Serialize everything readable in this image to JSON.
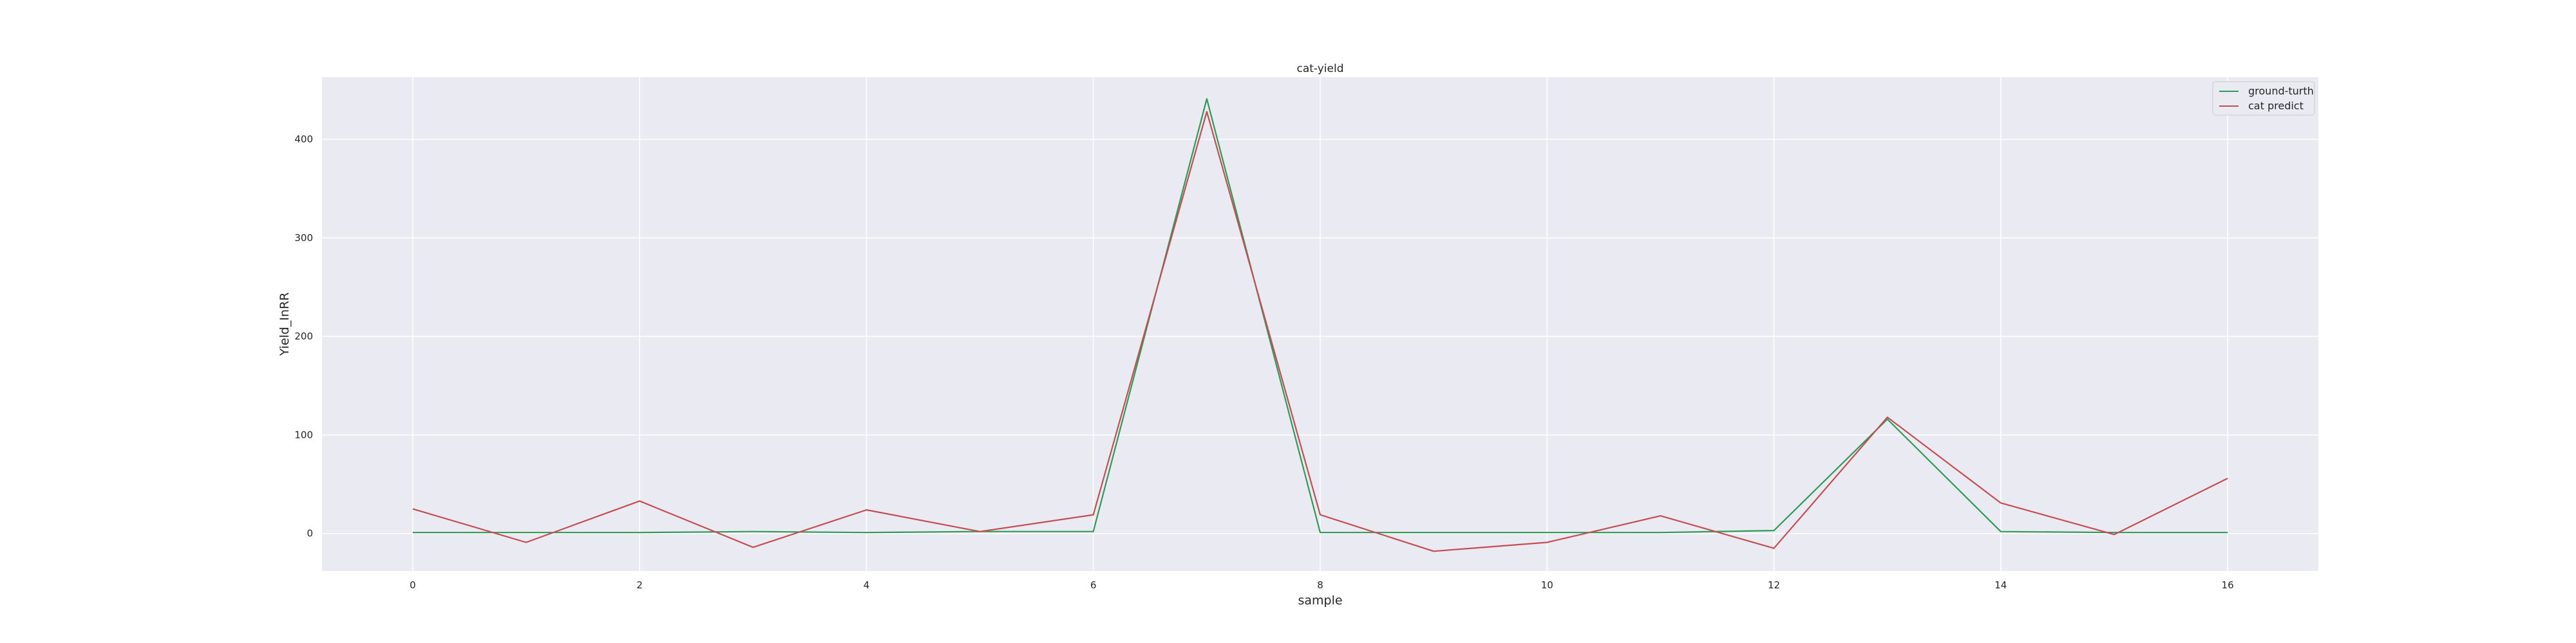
{
  "chart_data": {
    "type": "line",
    "title": "cat-yield",
    "xlabel": "sample",
    "ylabel": "Yield_InRR",
    "x": [
      0,
      1,
      2,
      3,
      4,
      5,
      6,
      7,
      8,
      9,
      10,
      11,
      12,
      13,
      14,
      15,
      16
    ],
    "xlim": [
      -0.8,
      16.8
    ],
    "ylim": [
      -38,
      463
    ],
    "xticks": [
      0,
      2,
      4,
      6,
      8,
      10,
      12,
      14,
      16
    ],
    "yticks": [
      0,
      100,
      200,
      300,
      400
    ],
    "grid": true,
    "legend_position": "top-right",
    "background": "#eaeaf2",
    "series": [
      {
        "name": "ground-turth",
        "color": "#2e9b56",
        "values": [
          1,
          1,
          1,
          2,
          1,
          2,
          2,
          441,
          1,
          1,
          1,
          1,
          3,
          116,
          2,
          1,
          1
        ]
      },
      {
        "name": "cat predict",
        "color": "#c44e52",
        "values": [
          25,
          -9,
          33,
          -14,
          24,
          2,
          19,
          428,
          19,
          -18,
          -9,
          18,
          -15,
          118,
          31,
          -1,
          56
        ]
      }
    ]
  }
}
